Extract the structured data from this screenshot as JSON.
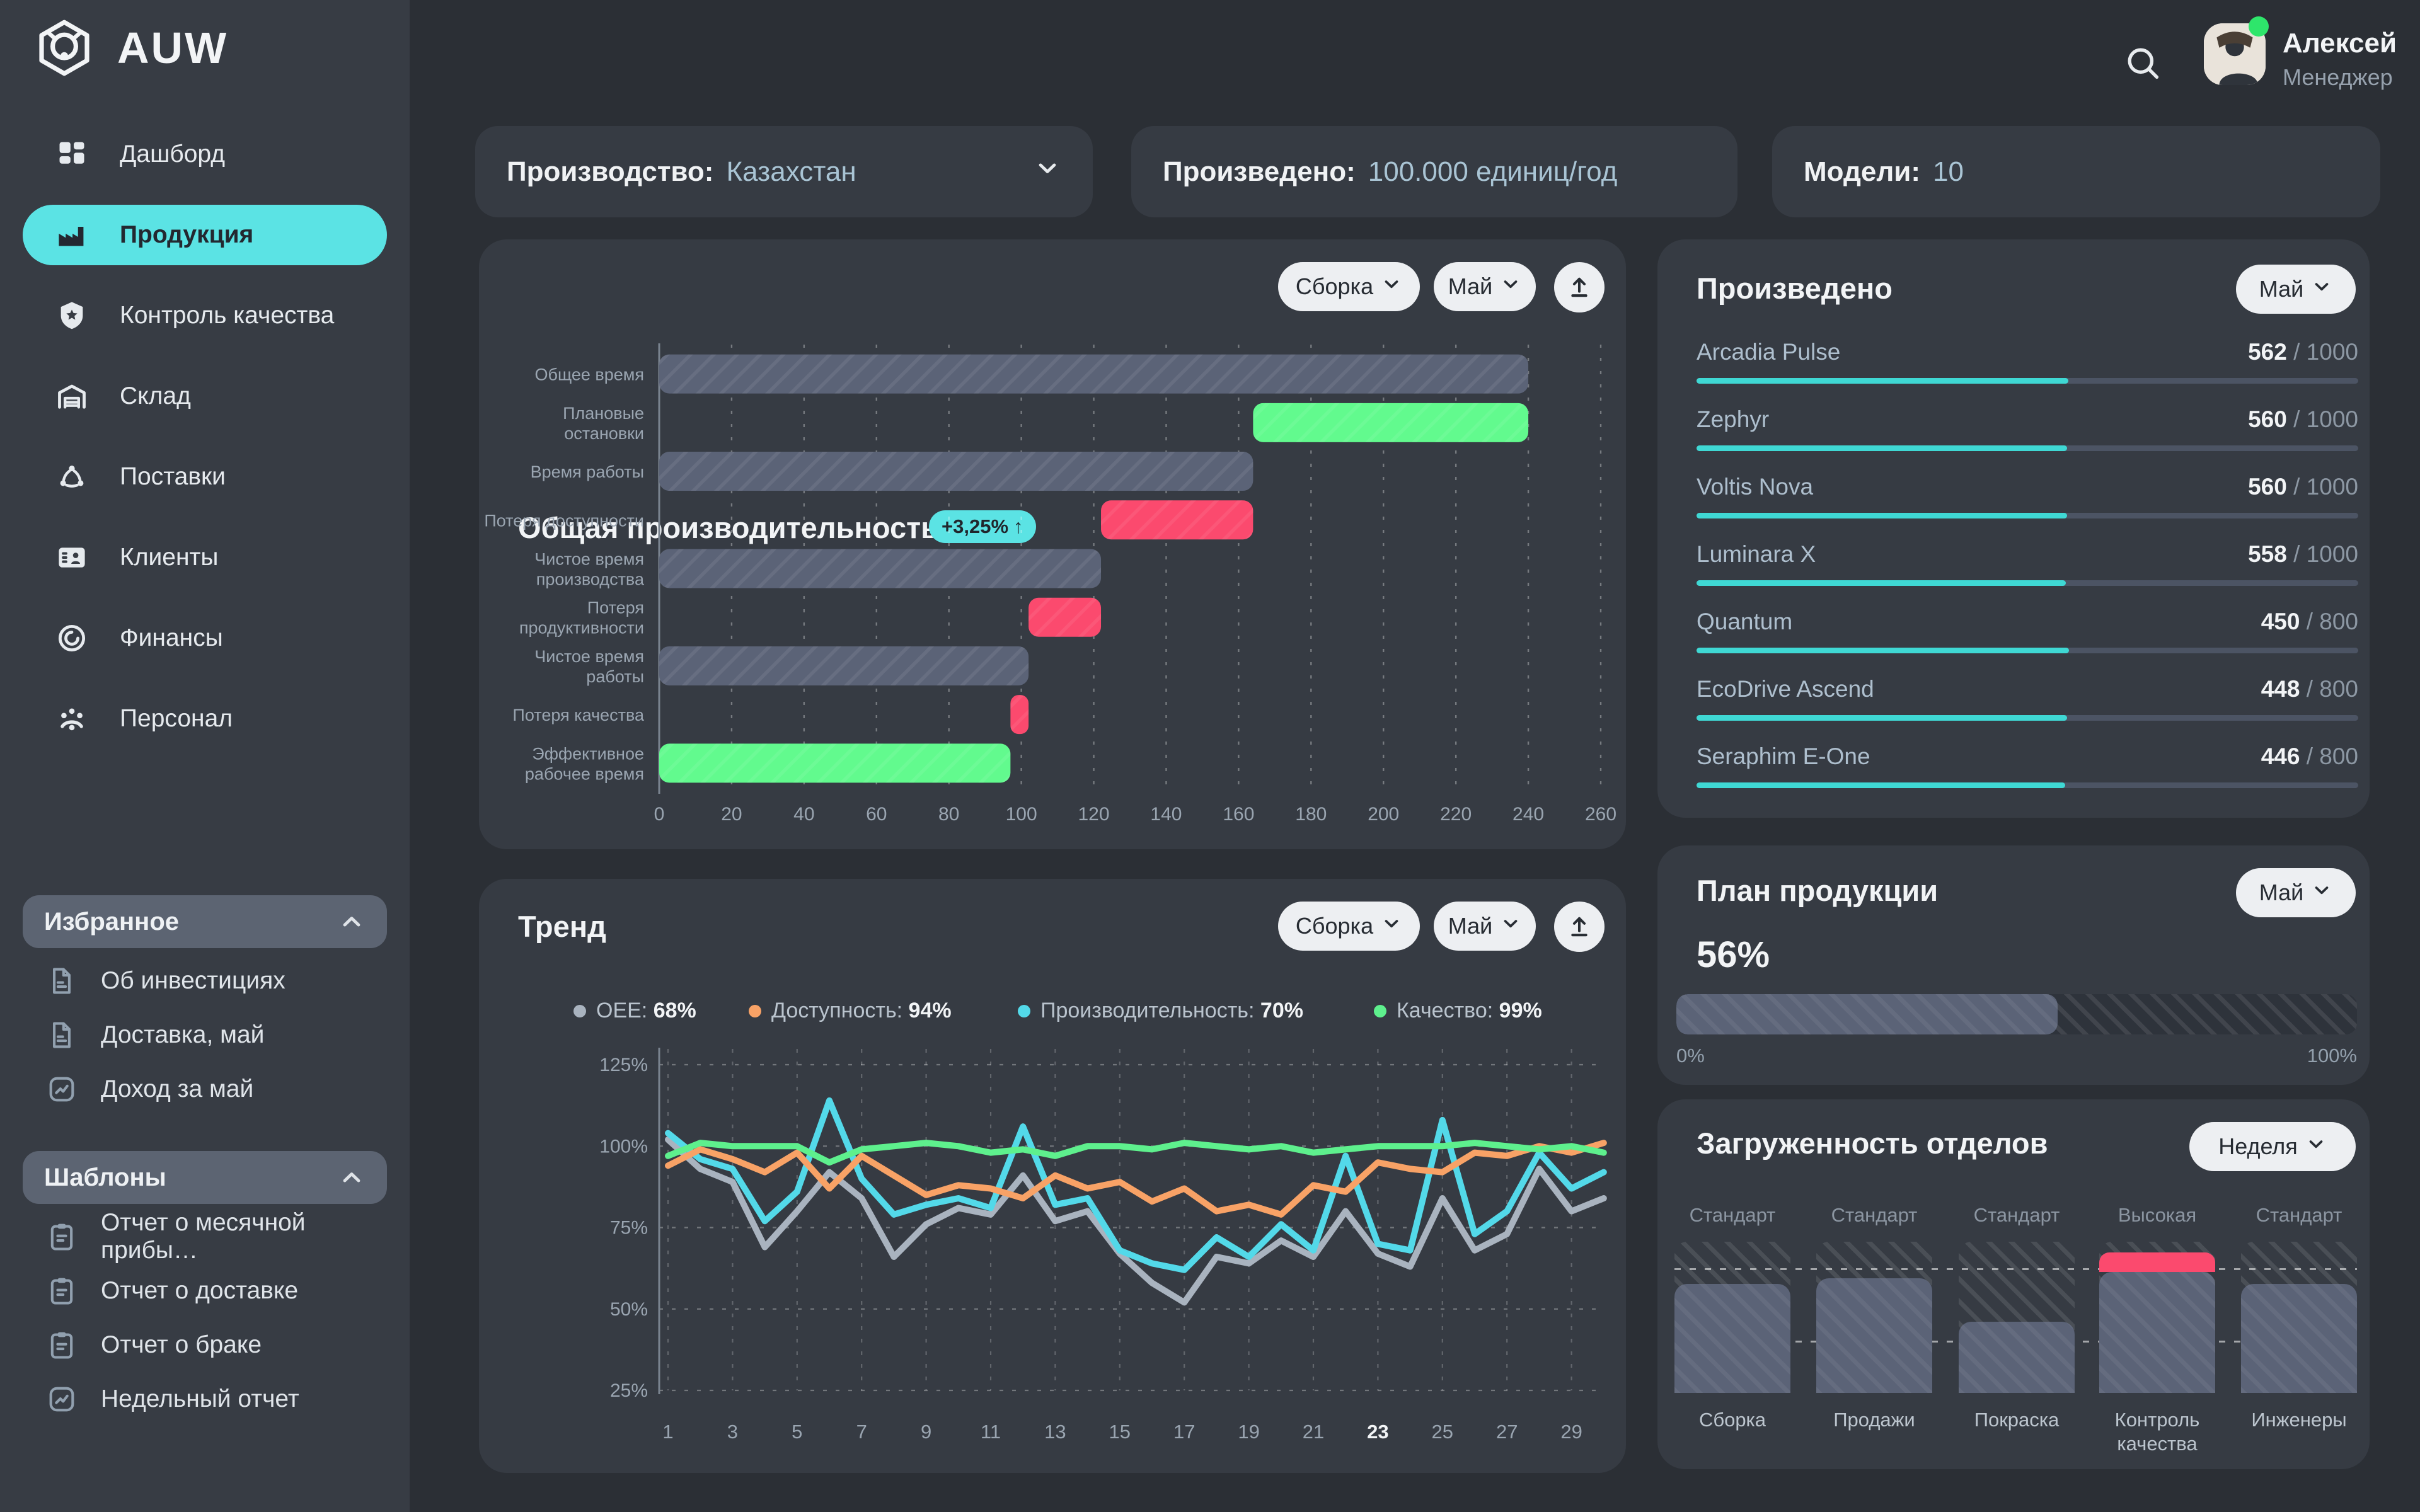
{
  "app": {
    "logo_text": "AUW"
  },
  "sidebar": {
    "menu": [
      {
        "id": "dashboard",
        "label": "Дашборд",
        "icon": "dashboard-grid",
        "active": false
      },
      {
        "id": "products",
        "label": "Продукция",
        "icon": "factory",
        "active": true
      },
      {
        "id": "quality-control",
        "label": "Контроль качества",
        "icon": "shield-star",
        "active": false
      },
      {
        "id": "warehouse",
        "label": "Склад",
        "icon": "warehouse",
        "active": false
      },
      {
        "id": "supplies",
        "label": "Поставки",
        "icon": "supply-network",
        "active": false
      },
      {
        "id": "clients",
        "label": "Клиенты",
        "icon": "id-card",
        "active": false
      },
      {
        "id": "finance",
        "label": "Финансы",
        "icon": "coin",
        "active": false
      },
      {
        "id": "staff",
        "label": "Персонал",
        "icon": "people",
        "active": false
      }
    ],
    "sections": [
      {
        "id": "favorites",
        "title": "Избранное",
        "items": [
          {
            "label": "Об инвестициях",
            "icon": "document"
          },
          {
            "label": "Доставка, май",
            "icon": "document"
          },
          {
            "label": "Доход за май",
            "icon": "chart-doc"
          }
        ]
      },
      {
        "id": "templates",
        "title": "Шаблоны",
        "items": [
          {
            "label": "Отчет о месячной прибы…",
            "icon": "clipboard"
          },
          {
            "label": "Отчет о доставке",
            "icon": "clipboard"
          },
          {
            "label": "Отчет о браке",
            "icon": "clipboard"
          },
          {
            "label": "Недельный отчет",
            "icon": "chart-doc"
          }
        ]
      }
    ]
  },
  "topbar": {
    "user_name": "Алексей",
    "user_role": "Менеджер"
  },
  "chips": [
    {
      "label": "Производство:",
      "value": "Казахстан",
      "has_chevron": true
    },
    {
      "label": "Произведено:",
      "value": "100.000 единиц/год",
      "has_chevron": false
    },
    {
      "label": "Модели:",
      "value": "10",
      "has_chevron": false
    }
  ],
  "performance_card": {
    "title": "Общая производительность",
    "badge": "+3,25%",
    "filters": [
      "Сборка",
      "Май"
    ]
  },
  "trend_card": {
    "title": "Тренд",
    "filters": [
      "Сборка",
      "Май"
    ]
  },
  "produced_card": {
    "title": "Произведено",
    "filter": "Май",
    "items": [
      {
        "name": "Arcadia Pulse",
        "produced": 562,
        "target": 1000
      },
      {
        "name": "Zephyr",
        "produced": 560,
        "target": 1000
      },
      {
        "name": "Voltis Nova",
        "produced": 560,
        "target": 1000
      },
      {
        "name": "Luminara X",
        "produced": 558,
        "target": 1000
      },
      {
        "name": "Quantum",
        "produced": 450,
        "target": 800
      },
      {
        "name": "EcoDrive Ascend",
        "produced": 448,
        "target": 800
      },
      {
        "name": "Seraphim E-One",
        "produced": 446,
        "target": 800
      }
    ]
  },
  "plan_card": {
    "title": "План продукции",
    "filter": "Май",
    "percent_label": "56%",
    "percent": 56,
    "min_label": "0%",
    "max_label": "100%"
  },
  "departments_card": {
    "title": "Загруженность отделов",
    "filter": "Неделя"
  },
  "colors": {
    "accent": "#5be3e4",
    "green": "#62fa8e",
    "red": "#fb4a6e",
    "slate": "#5b6377",
    "cyan_bar": "#3fd8d4",
    "line_gray": "#a9b3bf",
    "line_orange": "#f8a266",
    "line_cyan": "#53d9e9",
    "line_green": "#5ef08d"
  },
  "chart_data": [
    {
      "id": "oee-waterfall",
      "type": "bar",
      "variant": "horizontal-waterfall",
      "title": "Общая производительность",
      "categories": [
        "Общее время",
        "Плановые\nостановки",
        "Время работы",
        "Потеря доступности",
        "Чистое время\nпроизводства",
        "Потеря\nпродуктивности",
        "Чистое время\nработы",
        "Потеря качества",
        "Эффективное\nрабочее время"
      ],
      "ranges": [
        [
          0,
          240
        ],
        [
          164,
          240
        ],
        [
          0,
          164
        ],
        [
          122,
          164
        ],
        [
          0,
          122
        ],
        [
          102,
          122
        ],
        [
          0,
          102
        ],
        [
          97,
          102
        ],
        [
          0,
          97
        ]
      ],
      "bar_colors": [
        "slate",
        "green",
        "slate",
        "red",
        "slate",
        "red",
        "slate",
        "red",
        "green"
      ],
      "xlim": [
        0,
        260
      ],
      "xticks": [
        0,
        20,
        40,
        60,
        80,
        100,
        120,
        140,
        160,
        180,
        200,
        220,
        240,
        260
      ],
      "grid": "vertical-dashed"
    },
    {
      "id": "trend-lines",
      "type": "line",
      "title": "Тренд",
      "x": [
        1,
        2,
        3,
        4,
        5,
        6,
        7,
        8,
        9,
        10,
        11,
        12,
        13,
        14,
        15,
        16,
        17,
        18,
        19,
        20,
        21,
        22,
        23,
        24,
        25,
        26,
        27,
        28,
        29,
        30
      ],
      "xticks": [
        1,
        3,
        5,
        7,
        9,
        11,
        13,
        15,
        17,
        19,
        21,
        23,
        25,
        27,
        29
      ],
      "highlight_xtick": 23,
      "ylim": [
        25,
        125
      ],
      "yticks": [
        25,
        50,
        75,
        100,
        125
      ],
      "grid": "dashed",
      "legend_position": "top",
      "series": [
        {
          "name": "OEE",
          "legend_value": "68%",
          "color": "#a9b3bf",
          "values": [
            102,
            93,
            89,
            69,
            80,
            92,
            84,
            66,
            76,
            81,
            79,
            91,
            77,
            80,
            67,
            58,
            52,
            66,
            64,
            71,
            66,
            80,
            67,
            63,
            84,
            68,
            73,
            93,
            80,
            84
          ]
        },
        {
          "name": "Доступность",
          "legend_value": "94%",
          "color": "#f8a266",
          "values": [
            94,
            99,
            96,
            92,
            98,
            87,
            97,
            91,
            85,
            88,
            87,
            84,
            91,
            87,
            89,
            83,
            87,
            80,
            82,
            79,
            88,
            86,
            95,
            93,
            92,
            98,
            97,
            100,
            98,
            101
          ]
        },
        {
          "name": "Производительность",
          "legend_value": "70%",
          "color": "#53d9e9",
          "values": [
            104,
            96,
            93,
            77,
            86,
            114,
            90,
            79,
            82,
            84,
            81,
            106,
            82,
            84,
            68,
            64,
            62,
            72,
            66,
            76,
            68,
            97,
            70,
            68,
            108,
            73,
            80,
            98,
            87,
            92
          ]
        },
        {
          "name": "Качество",
          "legend_value": "99%",
          "color": "#5ef08d",
          "values": [
            97,
            101,
            100,
            100,
            100,
            95,
            99,
            100,
            101,
            100,
            98,
            99,
            97,
            100,
            100,
            99,
            101,
            100,
            99,
            100,
            98,
            99,
            100,
            100,
            100,
            101,
            100,
            99,
            100,
            98
          ]
        }
      ]
    },
    {
      "id": "department-load",
      "type": "bar",
      "categories": [
        "Сборка",
        "Продажи",
        "Покраска",
        "Контроль\nкачества",
        "Инженеры"
      ],
      "statuses": [
        "Стандарт",
        "Стандарт",
        "Стандарт",
        "Высокая",
        "Стандарт"
      ],
      "values": [
        72,
        76,
        47,
        80,
        72
      ],
      "overload": [
        0,
        0,
        0,
        13,
        0
      ],
      "capacity": 100
    }
  ]
}
